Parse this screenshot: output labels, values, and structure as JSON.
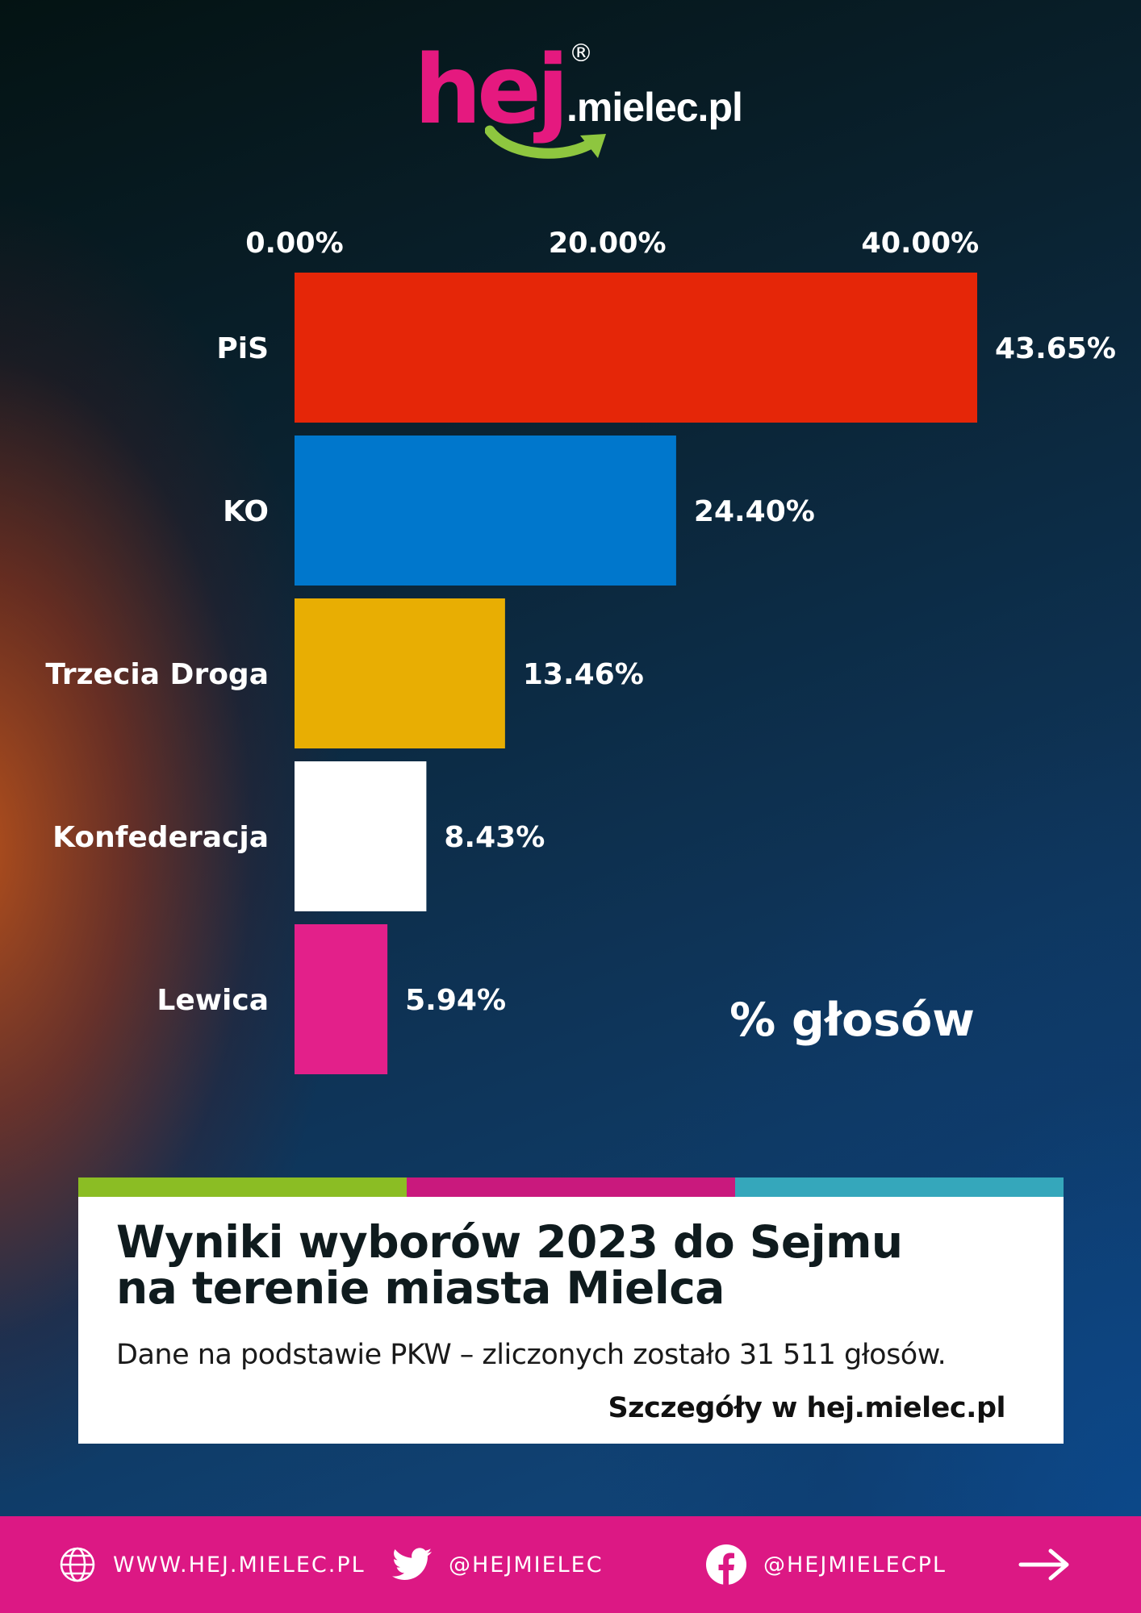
{
  "brand": {
    "logo_word": "hej",
    "logo_domain": ".mielec.pl",
    "registered_mark": "®",
    "logo_colors": {
      "word": "#e5197f",
      "arrow": "#8ec63f"
    }
  },
  "chart_data": {
    "type": "bar",
    "orientation": "horizontal",
    "categories": [
      "PiS",
      "KO",
      "Trzecia Droga",
      "Konfederacja",
      "Lewica"
    ],
    "values": [
      43.65,
      24.4,
      13.46,
      8.43,
      5.94
    ],
    "value_labels": [
      "43.65%",
      "24.40%",
      "13.46%",
      "8.43%",
      "5.94%"
    ],
    "colors": [
      "#e52608",
      "#0077cc",
      "#e8ae03",
      "#ffffff",
      "#e3208a"
    ],
    "x_ticks": [
      0,
      20,
      40
    ],
    "x_tick_labels": [
      "0.00%",
      "20.00%",
      "40.00%"
    ],
    "xlim": [
      0,
      43.65
    ],
    "axis_position": "top",
    "annotation": "% głosów",
    "grid": false
  },
  "card": {
    "stripe_colors": [
      "#8bbd24",
      "#c9197d",
      "#35a7bb"
    ],
    "title_line1": "Wyniki wyborów 2023 do Sejmu",
    "title_line2": "na terenie miasta Mielca",
    "subtitle": "Dane na podstawie PKW – zliczonych zostało 31 511 głosów.",
    "details": "Szczegóły w hej.mielec.pl"
  },
  "footer": {
    "website": "WWW.HEJ.MIELEC.PL",
    "twitter": "@HEJMIELEC",
    "facebook": "@HEJMIELECPL",
    "icons": [
      "globe-icon",
      "twitter-icon",
      "facebook-icon",
      "arrow-right-icon"
    ],
    "background": "#dc1884"
  }
}
